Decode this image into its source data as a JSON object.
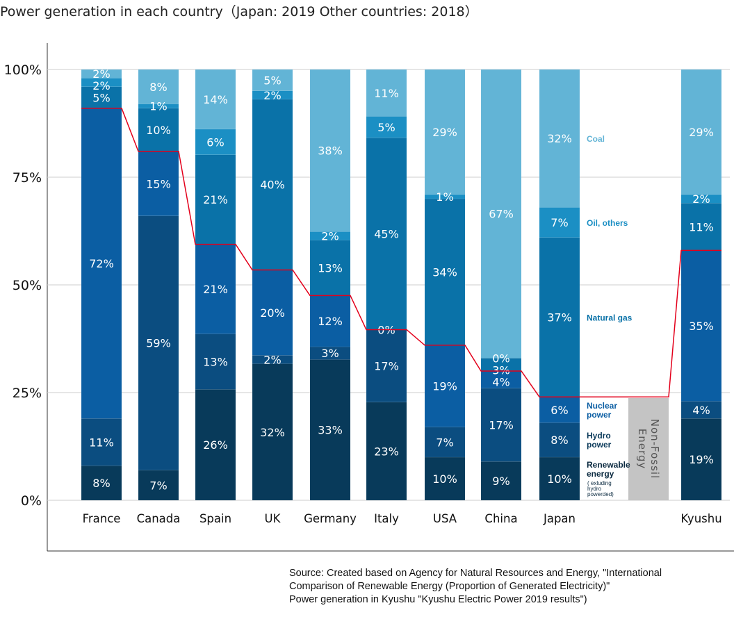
{
  "chart_data": {
    "type": "bar",
    "stacked": true,
    "title": "Power generation in each country（Japan: 2019  Other countries: 2018）",
    "categories": [
      "France",
      "Canada",
      "Spain",
      "UK",
      "Germany",
      "Italy",
      "USA",
      "China",
      "Japan",
      "Kyushu"
    ],
    "ylim": [
      0,
      100
    ],
    "yticks": [
      "0%",
      "25%",
      "50%",
      "75%",
      "100%"
    ],
    "grid": true,
    "series": [
      {
        "name": "Renewable energy",
        "color": "#083a5a",
        "values": [
          8,
          7,
          26,
          32,
          33,
          23,
          10,
          9,
          10,
          19
        ]
      },
      {
        "name": "Hydro power",
        "color": "#0b4d80",
        "values": [
          11,
          59,
          13,
          2,
          3,
          17,
          7,
          17,
          8,
          4
        ]
      },
      {
        "name": "Nuclear power",
        "color": "#0b5ea3",
        "values": [
          72,
          15,
          21,
          20,
          12,
          0,
          19,
          4,
          6,
          35
        ]
      },
      {
        "name": "Natural gas",
        "color": "#0a72a8",
        "values": [
          5,
          10,
          21,
          40,
          13,
          45,
          34,
          3,
          37,
          11
        ]
      },
      {
        "name": "Oil, others",
        "color": "#1b8fc4",
        "values": [
          2,
          1,
          6,
          2,
          2,
          5,
          1,
          0,
          7,
          2
        ]
      },
      {
        "name": "Coal",
        "color": "#62b4d6",
        "values": [
          2,
          8,
          14,
          5,
          38,
          11,
          29,
          67,
          32,
          29
        ]
      }
    ],
    "legend": {
      "placement": "inline-right-of-Japan",
      "labels": [
        [
          "Renewable",
          "energy"
        ],
        [
          "Hydro",
          "power"
        ],
        [
          "Nuclear",
          "power"
        ],
        [
          "Natural gas"
        ],
        [
          "Oil, others"
        ],
        [
          "Coal"
        ]
      ],
      "renewable_note": [
        "( exluding",
        "hydro",
        "powerded)"
      ]
    },
    "non_fossil_line_color": "#e3001b",
    "non_fossil_label": "Non-Fossil Energy",
    "non_fossil_label_lines": [
      "Non-Fossil",
      "Energy"
    ]
  },
  "source": [
    "Source: Created based on Agency for Natural Resources and Energy, \"International",
    "Comparison of Renewable Energy (Proportion of Generated Electricity)\"",
    "Power generation in Kyushu \"Kyushu Electric Power 2019 results\")"
  ]
}
